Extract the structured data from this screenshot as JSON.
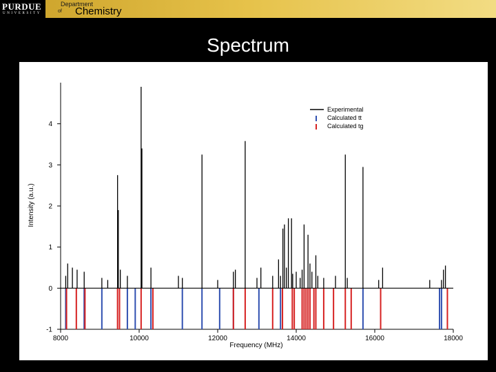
{
  "header": {
    "logo_text": "PURDUE",
    "logo_subtext": "UNIVERSITY",
    "dept_line1": "Department",
    "dept_of": "of",
    "dept_name": "Chemistry"
  },
  "slide_title": "Spectrum",
  "colors": {
    "experimental": "#000000",
    "calc_tt": "#2f4fb0",
    "calc_tg": "#d62020"
  },
  "chart_data": {
    "type": "bar",
    "xlabel": "Frequency (MHz)",
    "ylabel": "Intensity (a.u.)",
    "xlim": [
      8000,
      18000
    ],
    "ylim": [
      -1,
      5
    ],
    "xticks": [
      8000,
      10000,
      12000,
      14000,
      16000,
      18000
    ],
    "yticks": [
      -1,
      0,
      1,
      2,
      3,
      4
    ],
    "legend_position": "top-right",
    "series": [
      {
        "name": "Experimental",
        "style": "positive sticks",
        "x": [
          8130,
          8180,
          8300,
          8420,
          8600,
          9050,
          9200,
          9450,
          9470,
          9520,
          9700,
          10050,
          10070,
          10300,
          11000,
          11100,
          11600,
          12000,
          12400,
          12450,
          12700,
          13000,
          13100,
          13400,
          13550,
          13600,
          13660,
          13700,
          13750,
          13800,
          13880,
          13910,
          14000,
          14100,
          14150,
          14200,
          14300,
          14350,
          14400,
          14500,
          14550,
          14700,
          15000,
          15250,
          15300,
          15700,
          16100,
          16200,
          17400,
          17700,
          17750,
          17800
        ],
        "y": [
          0.3,
          0.6,
          0.5,
          0.45,
          0.4,
          0.25,
          0.2,
          2.75,
          1.9,
          0.45,
          0.3,
          4.9,
          3.4,
          0.5,
          0.3,
          0.25,
          3.25,
          0.2,
          0.4,
          0.45,
          3.58,
          0.25,
          0.5,
          0.3,
          0.7,
          0.3,
          1.45,
          1.55,
          0.5,
          1.7,
          1.7,
          0.35,
          0.4,
          0.25,
          0.45,
          1.55,
          1.3,
          0.6,
          0.4,
          0.8,
          0.3,
          0.25,
          0.3,
          3.25,
          0.25,
          2.95,
          0.2,
          0.5,
          0.2,
          0.2,
          0.45,
          0.55
        ]
      },
      {
        "name": "Calculated tt",
        "style": "negative sticks",
        "x": [
          8130,
          8600,
          9050,
          9500,
          9700,
          9900,
          10300,
          11100,
          11600,
          12050,
          12400,
          13050,
          13600,
          15700,
          17650,
          17700
        ],
        "y": [
          -1,
          -1,
          -1,
          -1,
          -1,
          -1,
          -1,
          -1,
          -1,
          -1,
          -1,
          -1,
          -1,
          -1,
          -1,
          -1
        ]
      },
      {
        "name": "Calculated tg",
        "style": "negative sticks",
        "x": [
          8150,
          8400,
          8620,
          9450,
          9500,
          10050,
          10350,
          12400,
          12700,
          13400,
          13650,
          13900,
          13950,
          14150,
          14200,
          14250,
          14300,
          14350,
          14450,
          14500,
          14700,
          14950,
          15250,
          15400,
          16150,
          17850
        ],
        "y": [
          -1,
          -1,
          -1,
          -1,
          -1,
          -1,
          -1,
          -1,
          -1,
          -1,
          -1,
          -1,
          -1,
          -1,
          -1,
          -1,
          -1,
          -1,
          -1,
          -1,
          -1,
          -1,
          -1,
          -1,
          -1,
          -1
        ]
      }
    ]
  }
}
